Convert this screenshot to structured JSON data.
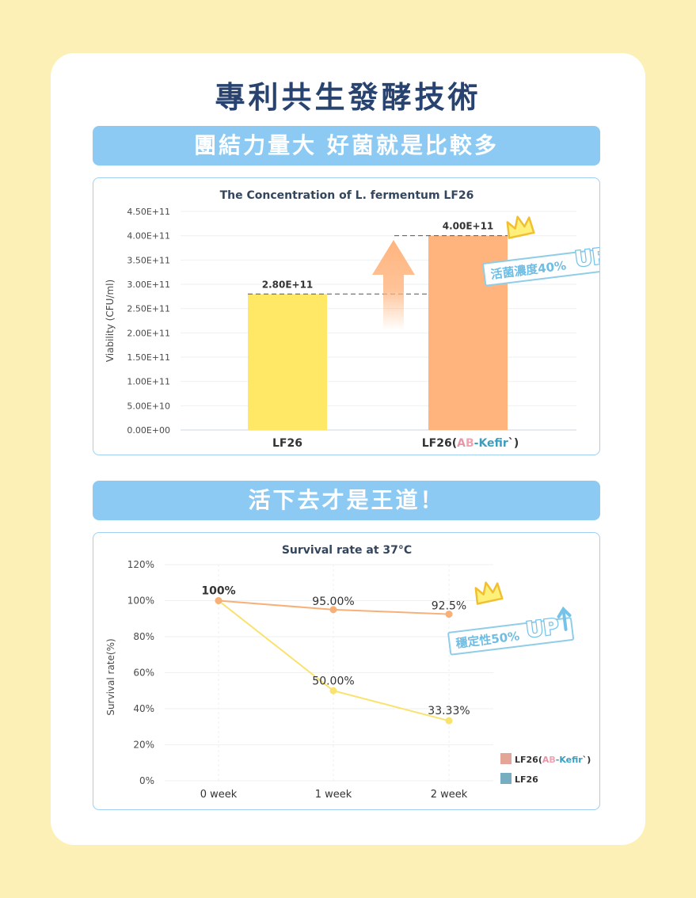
{
  "main_title": "專利共生發酵技術",
  "banner1": "團結力量大 好菌就是比較多",
  "banner2": "活下去才是王道！",
  "colors": {
    "background": "#fdf0b6",
    "title": "#28436f",
    "banner": "#8ccaf3",
    "bar_lf26": "#ffe866",
    "bar_ab": "#ffb47e",
    "line_ab": "#f6b078",
    "line_lf26": "#f9e26d",
    "legend_ab": "#e3a597",
    "legend_lf26": "#76adc0"
  },
  "chart1_badge": {
    "text": "活菌濃度40%",
    "up": "UP",
    "icon": "crown-icon"
  },
  "chart2_badge": {
    "text": "穩定性50%",
    "up": "UP",
    "icon": "crown-icon"
  },
  "chart_data": [
    {
      "type": "bar",
      "title": "The Concentration of L. fermentum LF26",
      "ylabel": "Viability (CFU/ml)",
      "xlabel": "",
      "ylim": [
        0,
        450000000000
      ],
      "yticks": [
        {
          "value": 0,
          "label": "0.00E+00"
        },
        {
          "value": 50000000000,
          "label": "5.00E+10"
        },
        {
          "value": 100000000000,
          "label": "1.00E+11"
        },
        {
          "value": 150000000000,
          "label": "1.50E+11"
        },
        {
          "value": 200000000000,
          "label": "2.00E+11"
        },
        {
          "value": 250000000000,
          "label": "2.50E+11"
        },
        {
          "value": 300000000000,
          "label": "3.00E+11"
        },
        {
          "value": 350000000000,
          "label": "3.50E+11"
        },
        {
          "value": 400000000000,
          "label": "4.00E+11"
        },
        {
          "value": 450000000000,
          "label": "4.50E+11"
        }
      ],
      "grid": true,
      "categories": [
        "LF26",
        "LF26(AB-Kefir`)"
      ],
      "category_parts": [
        {
          "prefix": "LF26",
          "brand_a": "",
          "brand_b": "",
          "brand_rest": "",
          "suffix": ""
        },
        {
          "prefix": "LF26(",
          "brand_a": "A",
          "brand_b": "B",
          "brand_rest": "-Kefir",
          "suffix": "`)"
        }
      ],
      "values": [
        280000000000,
        400000000000
      ],
      "value_labels": [
        "2.80E+11",
        "4.00E+11"
      ]
    },
    {
      "type": "line",
      "title": "Survival rate at 37°C",
      "ylabel": "Survival rate(%)",
      "xlabel": "",
      "ylim": [
        0,
        120
      ],
      "yticks": [
        {
          "value": 0,
          "label": "0%"
        },
        {
          "value": 20,
          "label": "20%"
        },
        {
          "value": 40,
          "label": "40%"
        },
        {
          "value": 60,
          "label": "60%"
        },
        {
          "value": 80,
          "label": "80%"
        },
        {
          "value": 100,
          "label": "100%"
        },
        {
          "value": 120,
          "label": "120%"
        }
      ],
      "grid": true,
      "categories": [
        "0 week",
        "1 week",
        "2 week"
      ],
      "series": [
        {
          "name": "LF26(AB-Kefir`)",
          "values": [
            100,
            95,
            92.5
          ],
          "labels": [
            "100%",
            "95.00%",
            "92.5%"
          ]
        },
        {
          "name": "LF26",
          "values": [
            100,
            50,
            33.33
          ],
          "labels": [
            "",
            "50.00%",
            "33.33%"
          ]
        }
      ],
      "legend_position": "bottom-right",
      "legend": [
        {
          "prefix": "LF26(",
          "brand_a": "A",
          "brand_b": "B",
          "brand_rest": "-Kefir",
          "suffix": "`)"
        },
        {
          "prefix": "LF26",
          "brand_a": "",
          "brand_b": "",
          "brand_rest": "",
          "suffix": ""
        }
      ]
    }
  ]
}
